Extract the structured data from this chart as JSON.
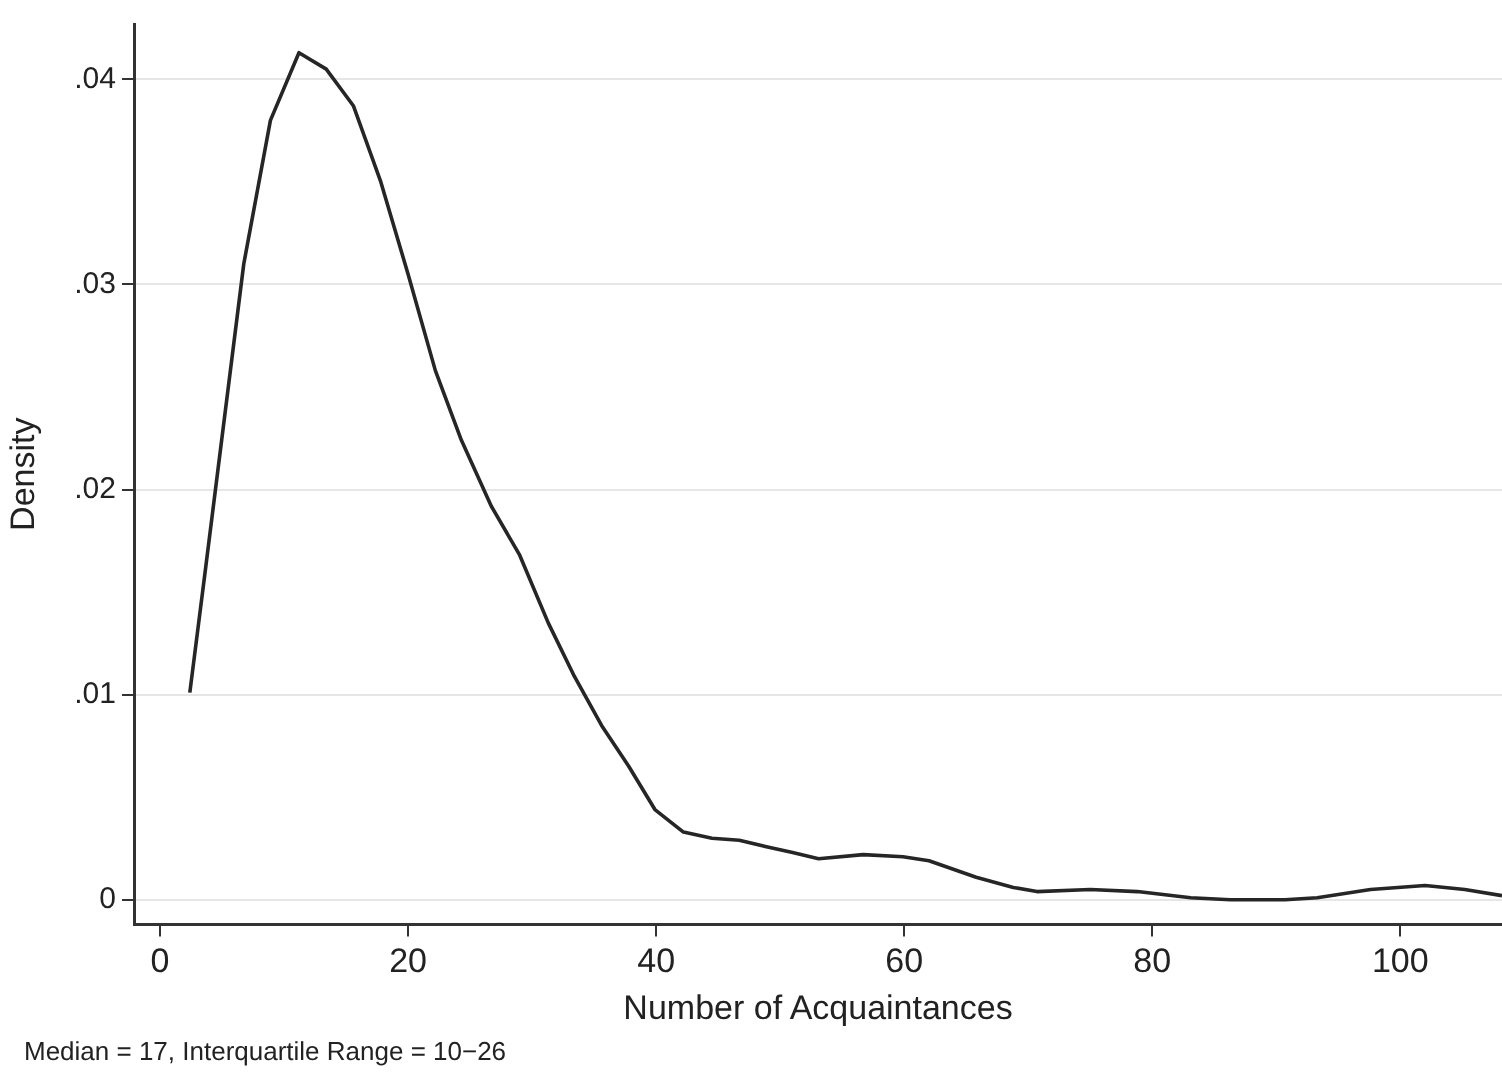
{
  "chart_data": {
    "type": "line",
    "xlabel": "Number of Acquaintances",
    "ylabel": "Density",
    "annotations": [
      "Median = 17, Interquartile Range = 10−26"
    ],
    "x": [
      2.4,
      3.7,
      6.75,
      8.9,
      11.2,
      13.4,
      15.6,
      17.8,
      20.0,
      22.2,
      24.3,
      26.7,
      29.0,
      31.3,
      33.4,
      35.6,
      37.8,
      39.9,
      42.2,
      44.5,
      46.7,
      48.8,
      51.0,
      53.1,
      56.7,
      59.9,
      62.0,
      65.8,
      68.8,
      70.7,
      75.0,
      78.8,
      83.1,
      86.3,
      90.7,
      93.3,
      97.6,
      102.0,
      105.2,
      108.2
    ],
    "series": [
      {
        "color": "#262626",
        "values": [
          0.0101,
          0.0163,
          0.031,
          0.038,
          0.0413,
          0.0405,
          0.0387,
          0.035,
          0.0305,
          0.0258,
          0.0224,
          0.0192,
          0.0168,
          0.0135,
          0.0109,
          0.0085,
          0.0065,
          0.0044,
          0.0033,
          0.003,
          0.0029,
          0.0026,
          0.0023,
          0.002,
          0.0022,
          0.0021,
          0.0019,
          0.0011,
          0.0006,
          0.0004,
          0.0005,
          0.0004,
          0.0001,
          0.0,
          0.0,
          0.0001,
          0.0005,
          0.0007,
          0.0005,
          0.0002
        ]
      }
    ],
    "xlim": [
      -2.1,
      108.2
    ],
    "xticks": [
      0,
      20,
      40,
      60,
      80,
      100
    ],
    "ylim": [
      -0.0012,
      0.0427
    ],
    "yticks": [
      {
        "value": 0,
        "label": "0"
      },
      {
        "value": 0.01,
        "label": ".01"
      },
      {
        "value": 0.02,
        "label": ".02"
      },
      {
        "value": 0.03,
        "label": ".03"
      },
      {
        "value": 0.04,
        "label": ".04"
      }
    ],
    "grid": "y",
    "legend": false,
    "marker": "none",
    "line_style": "solid"
  }
}
